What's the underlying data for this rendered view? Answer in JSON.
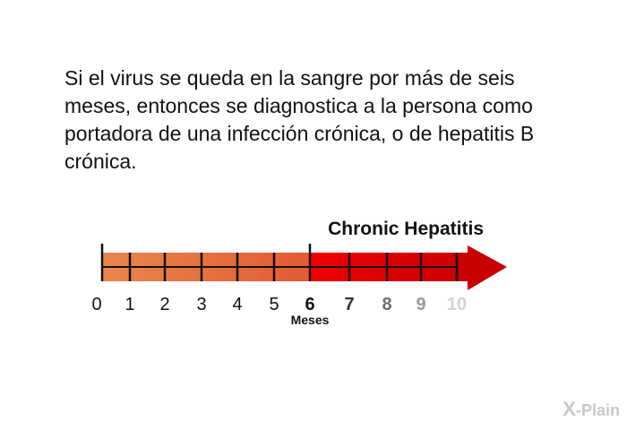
{
  "paragraph": "Si el virus se queda en la sangre por más de seis meses, entonces se diagnostica a la persona como portadora de una infección crónica, o de hepatitis B crónica.",
  "diagram": {
    "label": "Chronic Hepatitis",
    "axis_label": "Meses",
    "ticks": [
      {
        "value": "0",
        "color": "#111111",
        "bold": false
      },
      {
        "value": "1",
        "color": "#111111",
        "bold": false
      },
      {
        "value": "2",
        "color": "#111111",
        "bold": false
      },
      {
        "value": "3",
        "color": "#111111",
        "bold": false
      },
      {
        "value": "4",
        "color": "#111111",
        "bold": false
      },
      {
        "value": "5",
        "color": "#111111",
        "bold": false
      },
      {
        "value": "6",
        "color": "#111111",
        "bold": true
      },
      {
        "value": "7",
        "color": "#333333",
        "bold": true
      },
      {
        "value": "8",
        "color": "#6e6e6e",
        "bold": true
      },
      {
        "value": "9",
        "color": "#9a9a9a",
        "bold": true
      },
      {
        "value": "10",
        "color": "#d2d2d2",
        "bold": true
      }
    ],
    "threshold_month": 6,
    "colors": {
      "acute_start": "#e8874f",
      "acute_end": "#e35a32",
      "chronic_start": "#f00000",
      "chronic_end": "#c80000",
      "line": "#111111"
    }
  },
  "logo": {
    "mark": "X",
    "text": "-Plain"
  }
}
